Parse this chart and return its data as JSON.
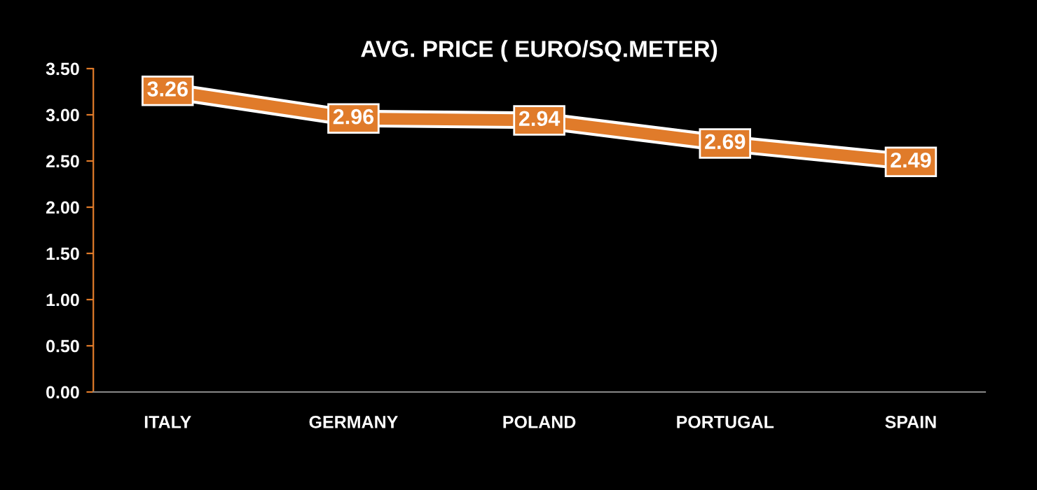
{
  "chart_data": {
    "type": "line",
    "title": "AVG. PRICE ( EURO/SQ.METER)",
    "categories": [
      "ITALY",
      "GERMANY",
      "POLAND",
      "PORTUGAL",
      "SPAIN"
    ],
    "values": [
      3.26,
      2.96,
      2.94,
      2.69,
      2.49
    ],
    "color": "#e07b2a",
    "ylim": [
      0,
      3.5
    ],
    "yticks": [
      {
        "value": 0,
        "label": "0.00"
      },
      {
        "value": 0.5,
        "label": "0.50"
      },
      {
        "value": 1,
        "label": "1.00"
      },
      {
        "value": 1.5,
        "label": "1.50"
      },
      {
        "value": 2,
        "label": "2.00"
      },
      {
        "value": 2.5,
        "label": "2.50"
      },
      {
        "value": 3,
        "label": "3.00"
      },
      {
        "value": 3.5,
        "label": "3.50"
      }
    ],
    "data_labels": true,
    "grid": false,
    "marker": "square",
    "line_style": "solid"
  }
}
